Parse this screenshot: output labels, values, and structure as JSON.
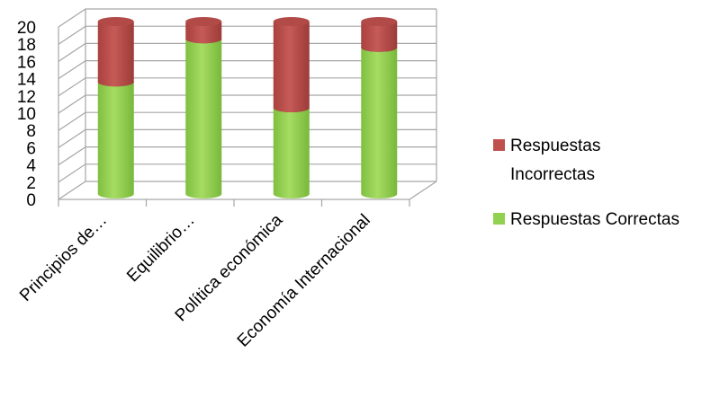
{
  "chart_data": {
    "type": "bar",
    "stacked": true,
    "style": "3d-cylinder",
    "categories": [
      "Principios de…",
      "Equilibrio…",
      "Política económica",
      "Economía Internacional"
    ],
    "series": [
      {
        "name": "Respuestas Correctas",
        "values": [
          13,
          18,
          10,
          17
        ],
        "color": "#92d050"
      },
      {
        "name": "Respuestas Incorrectas",
        "values": [
          7,
          2,
          10,
          3
        ],
        "color": "#c0504d"
      }
    ],
    "ylim": [
      0,
      20
    ],
    "yticks": [
      "0",
      "2",
      "4",
      "6",
      "8",
      "10",
      "12",
      "14",
      "16",
      "18",
      "20"
    ],
    "grid": true,
    "legend_position": "right",
    "legend": {
      "incorrect_lines": [
        "Respuestas",
        "Incorrectas"
      ],
      "correct": "Respuestas Correctas"
    }
  }
}
